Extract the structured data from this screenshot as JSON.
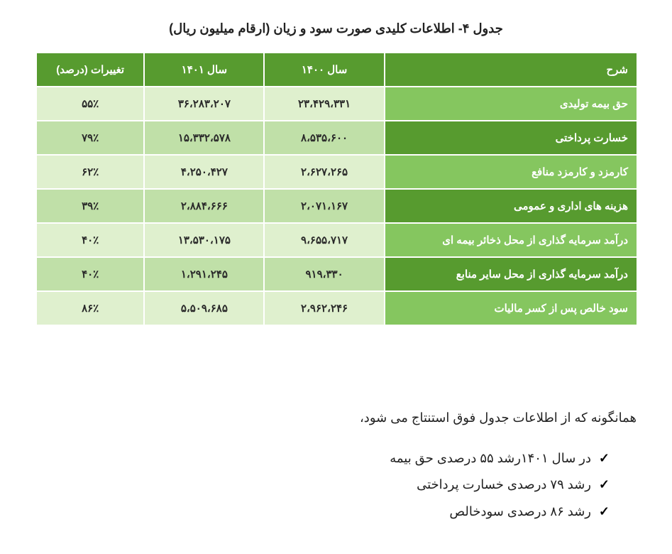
{
  "title": "جدول ۴- اطلاعات کلیدی صورت سود و زیان (ارقام میلیون ریال)",
  "colors": {
    "header_bg": "#579b2f",
    "header_fg": "#ffffff",
    "desc_dark_bg": "#579b2f",
    "desc_light_bg": "#85c65f",
    "num_dark_bg": "#c0e0a8",
    "num_light_bg": "#dff0ce",
    "num_fg": "#2a2a2a",
    "page_bg": "#ffffff",
    "row_border": "#ffffff",
    "text": "#222222"
  },
  "typography": {
    "title_fontsize_pt": 14,
    "table_fontsize_pt": 11,
    "body_fontsize_pt": 13,
    "font_family": "Tahoma"
  },
  "table": {
    "type": "table",
    "columns": [
      {
        "key": "desc",
        "label": "شرح",
        "width_pct": 42,
        "align": "right"
      },
      {
        "key": "y1400",
        "label": "سال ۱۴۰۰",
        "width_pct": 20,
        "align": "center"
      },
      {
        "key": "y1401",
        "label": "سال ۱۴۰۱",
        "width_pct": 20,
        "align": "center"
      },
      {
        "key": "chg",
        "label": "تغییرات (درصد)",
        "width_pct": 18,
        "align": "center"
      }
    ],
    "rows": [
      {
        "desc": "حق بیمه تولیدی",
        "y1400": "۲۳،۴۲۹،۳۳۱",
        "y1401": "۳۶،۲۸۳،۲۰۷",
        "chg": "۵۵٪",
        "shade": "light"
      },
      {
        "desc": "خسارت پرداختی",
        "y1400": "۸،۵۳۵،۶۰۰",
        "y1401": "۱۵،۳۳۲،۵۷۸",
        "chg": "۷۹٪",
        "shade": "dark"
      },
      {
        "desc": "کارمزد و کارمزد منافع",
        "y1400": "۲،۶۲۷،۲۶۵",
        "y1401": "۴،۲۵۰،۴۲۷",
        "chg": "۶۲٪",
        "shade": "light"
      },
      {
        "desc": "هزینه های اداری و عمومی",
        "y1400": "۲،۰۷۱،۱۶۷",
        "y1401": "۲،۸۸۴،۶۶۶",
        "chg": "۳۹٪",
        "shade": "dark"
      },
      {
        "desc": "درآمد سرمایه گذاری از محل ذخائر بیمه ای",
        "y1400": "۹،۶۵۵،۷۱۷",
        "y1401": "۱۳،۵۳۰،۱۷۵",
        "chg": "۴۰٪",
        "shade": "light"
      },
      {
        "desc": "درآمد سرمایه گذاری از محل سایر منابع",
        "y1400": "۹۱۹،۳۳۰",
        "y1401": "۱،۲۹۱،۲۴۵",
        "chg": "۴۰٪",
        "shade": "dark"
      },
      {
        "desc": "سود خالص پس از کسر مالیات",
        "y1400": "۲،۹۶۲،۲۴۶",
        "y1401": "۵،۵۰۹،۶۸۵",
        "chg": "۸۶٪",
        "shade": "light"
      }
    ]
  },
  "paragraph": "همانگونه که از اطلاعات جدول فوق استنتاج می شود،",
  "bullets": [
    "در سال ۱۴۰۱رشد ۵۵  درصدی حق بیمه",
    "رشد  ۷۹  درصدی خسارت پرداختی",
    "رشد  ۸۶  درصدی سودخالص"
  ]
}
